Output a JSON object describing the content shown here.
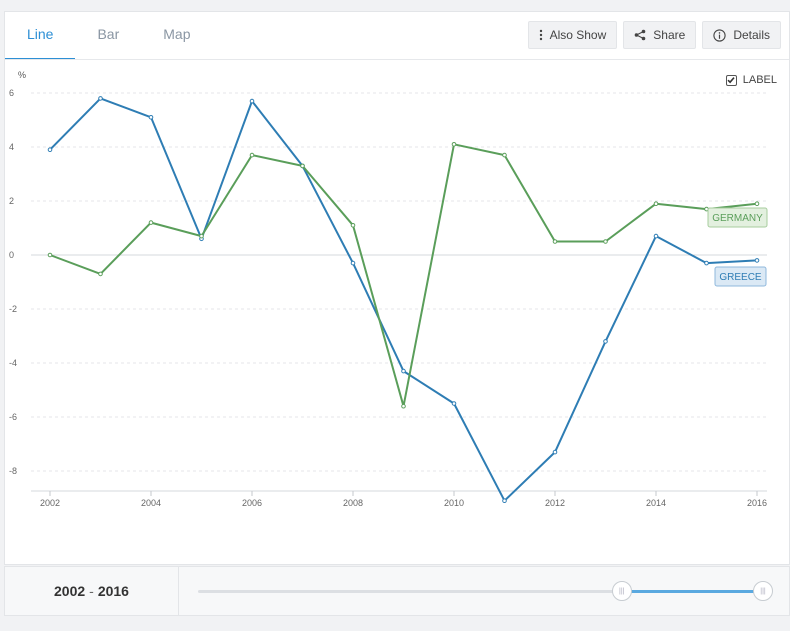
{
  "tabs": [
    {
      "label": "Line",
      "active": true
    },
    {
      "label": "Bar",
      "active": false
    },
    {
      "label": "Map",
      "active": false
    }
  ],
  "toolbar": {
    "also_show": "Also Show",
    "share": "Share",
    "details": "Details"
  },
  "label_toggle": {
    "label": "LABEL",
    "checked": true
  },
  "chart_data": {
    "type": "line",
    "ylabel": "%",
    "ylim": [
      -8.8,
      6.5
    ],
    "yticks": [
      6,
      4,
      2,
      0,
      -2,
      -4,
      -6,
      -8
    ],
    "xticks": [
      2002,
      2004,
      2006,
      2008,
      2010,
      2012,
      2014,
      2016
    ],
    "x": [
      2002,
      2003,
      2004,
      2005,
      2006,
      2007,
      2008,
      2009,
      2010,
      2011,
      2012,
      2013,
      2014,
      2015,
      2016
    ],
    "series": [
      {
        "name": "GREECE",
        "color": "#2e7db4",
        "values": [
          3.9,
          5.8,
          5.1,
          0.6,
          5.7,
          3.3,
          -0.3,
          -4.3,
          -5.5,
          -9.1,
          -7.3,
          -3.2,
          0.7,
          -0.3,
          -0.2
        ]
      },
      {
        "name": "GERMANY",
        "color": "#5a9e5a",
        "values": [
          0.0,
          -0.7,
          1.2,
          0.7,
          3.7,
          3.3,
          1.1,
          -5.6,
          4.1,
          3.7,
          0.5,
          0.5,
          1.9,
          1.7,
          1.9
        ]
      }
    ],
    "grid": true,
    "legend": "end-labels"
  },
  "footer": {
    "range_start": "2002",
    "range_sep": "-",
    "range_end": "2016",
    "slider_start_fraction": 0.75,
    "slider_end_fraction": 1.0
  }
}
